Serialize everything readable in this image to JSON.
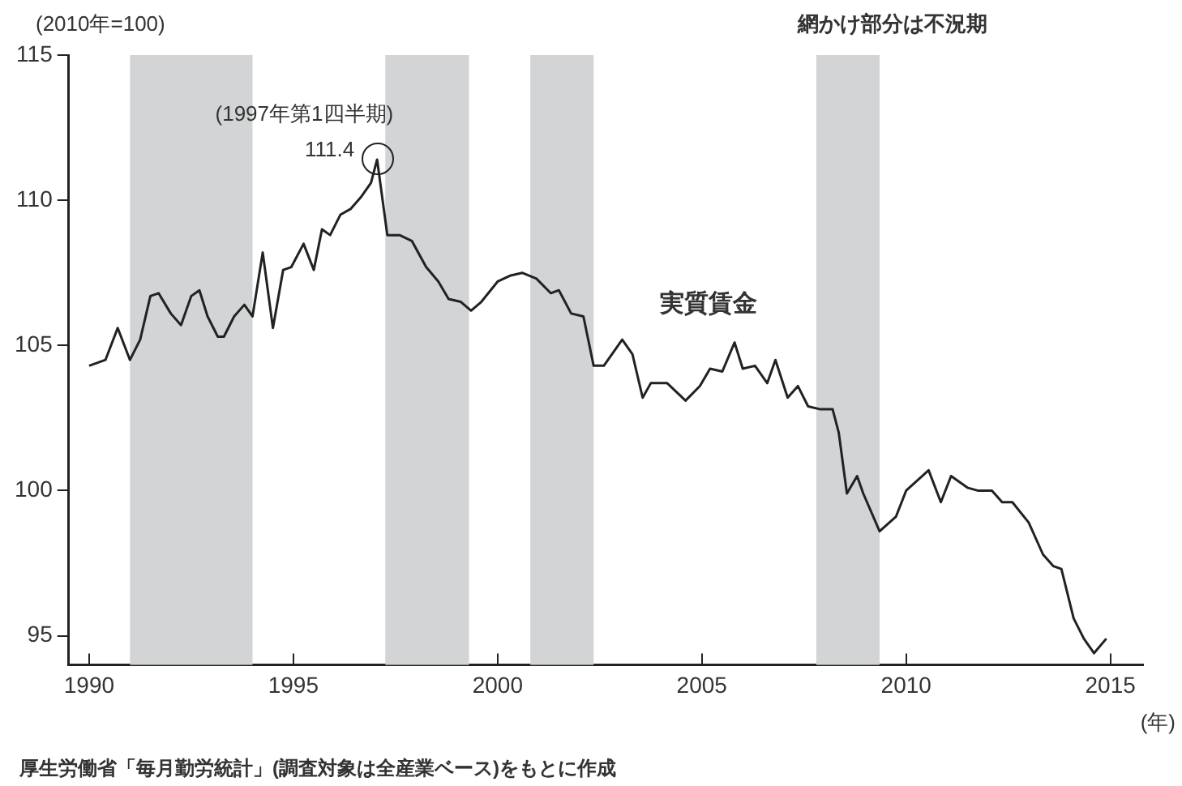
{
  "chart_data": {
    "type": "line",
    "ylabel": "(2010年=100)",
    "xlabel": "(年)",
    "xlim": [
      1989.5,
      2015.8
    ],
    "xticks": [
      1990,
      1995,
      2000,
      2005,
      2010,
      2015
    ],
    "ylim": [
      94,
      115
    ],
    "yticks": [
      95,
      100,
      105,
      110,
      115
    ],
    "grid": false,
    "legend": false,
    "marker": "none",
    "line_style": "solid",
    "series": [
      {
        "name": "実質賃金",
        "color": "#222222",
        "x": [
          1990.0,
          1990.4,
          1990.7,
          1991.0,
          1991.25,
          1991.5,
          1991.7,
          1992.0,
          1992.25,
          1992.5,
          1992.7,
          1992.9,
          1993.15,
          1993.3,
          1993.55,
          1993.8,
          1994.0,
          1994.25,
          1994.5,
          1994.75,
          1994.95,
          1995.25,
          1995.5,
          1995.7,
          1995.9,
          1996.15,
          1996.4,
          1996.65,
          1996.9,
          1997.05,
          1997.3,
          1997.6,
          1997.9,
          1998.25,
          1998.55,
          1998.8,
          1999.1,
          1999.35,
          1999.6,
          2000.0,
          2000.3,
          2000.6,
          2000.95,
          2001.3,
          2001.5,
          2001.8,
          2002.1,
          2002.35,
          2002.6,
          2003.05,
          2003.3,
          2003.55,
          2003.75,
          2004.15,
          2004.6,
          2004.95,
          2005.2,
          2005.5,
          2005.8,
          2006.0,
          2006.3,
          2006.6,
          2006.8,
          2007.1,
          2007.35,
          2007.6,
          2007.9,
          2008.2,
          2008.35,
          2008.55,
          2008.8,
          2008.95,
          2009.35,
          2009.75,
          2010.0,
          2010.55,
          2010.85,
          2011.1,
          2011.5,
          2011.75,
          2012.1,
          2012.35,
          2012.6,
          2013.0,
          2013.35,
          2013.6,
          2013.8,
          2014.1,
          2014.35,
          2014.6,
          2014.9
        ],
        "values": [
          104.3,
          104.5,
          105.6,
          104.5,
          105.2,
          106.7,
          106.8,
          106.1,
          105.7,
          106.7,
          106.9,
          106.0,
          105.3,
          105.3,
          106.0,
          106.4,
          106.0,
          108.2,
          105.6,
          107.6,
          107.7,
          108.5,
          107.6,
          109.0,
          108.8,
          109.5,
          109.7,
          110.1,
          110.6,
          111.4,
          108.8,
          108.8,
          108.6,
          107.7,
          107.2,
          106.6,
          106.5,
          106.2,
          106.5,
          107.2,
          107.4,
          107.5,
          107.3,
          106.8,
          106.9,
          106.1,
          106.0,
          104.3,
          104.3,
          105.2,
          104.7,
          103.2,
          103.7,
          103.7,
          103.1,
          103.6,
          104.2,
          104.1,
          105.1,
          104.2,
          104.3,
          103.7,
          104.5,
          103.2,
          103.6,
          102.9,
          102.8,
          102.8,
          102.0,
          99.9,
          100.5,
          99.9,
          98.6,
          99.1,
          100.0,
          100.7,
          99.6,
          100.5,
          100.1,
          100.0,
          100.0,
          99.6,
          99.6,
          98.9,
          97.8,
          97.4,
          97.3,
          95.6,
          94.9,
          94.4,
          94.9
        ]
      }
    ],
    "bands": [
      {
        "axis": "x",
        "from": 1991.0,
        "to": 1994.0,
        "color": "#d2d4d6"
      },
      {
        "axis": "x",
        "from": 1997.25,
        "to": 1999.3,
        "color": "#d2d4d6"
      },
      {
        "axis": "x",
        "from": 2000.8,
        "to": 2002.35,
        "color": "#d2d4d6"
      },
      {
        "axis": "x",
        "from": 2007.8,
        "to": 2009.35,
        "color": "#d2d4d6"
      }
    ],
    "annotations": [
      "網かけ部分は不況期",
      "厚生労働省「毎月勤労統計」(調査対象は全産業ベース)をもとに作成",
      {
        "text": "(1997年第1四半期)",
        "x": 1997.05,
        "y": 111.4
      },
      {
        "text": "111.4",
        "x": 1997.05,
        "y": 111.4
      }
    ]
  }
}
